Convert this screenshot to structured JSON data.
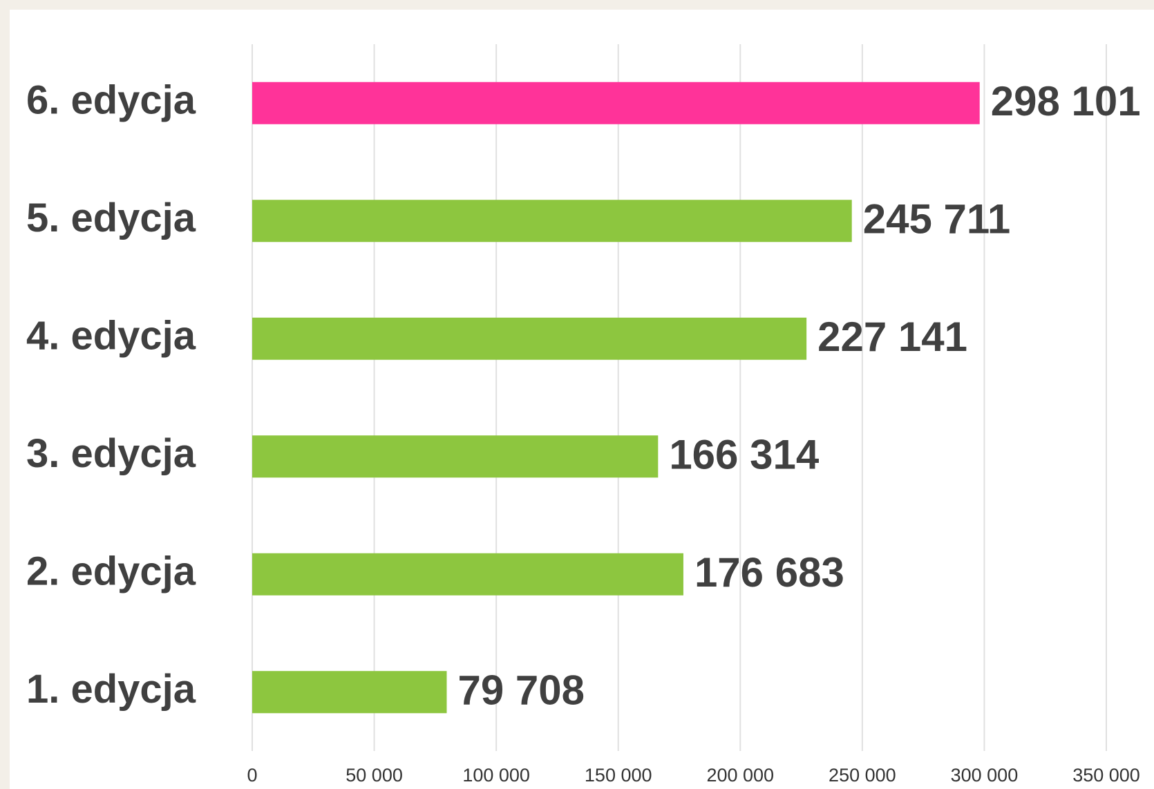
{
  "chart_data": {
    "type": "barh",
    "categories": [
      "6. edycja",
      "5. edycja",
      "4. edycja",
      "3. edycja",
      "2. edycja",
      "1. edycja"
    ],
    "values": [
      298101,
      245711,
      227141,
      166314,
      176683,
      79708
    ],
    "value_labels": [
      "298 101",
      "245 711",
      "227 141",
      "166 314",
      "176 683",
      "79 708"
    ],
    "colors": [
      "#ff3399",
      "#8dc63f",
      "#8dc63f",
      "#8dc63f",
      "#8dc63f",
      "#8dc63f"
    ],
    "xlim": [
      0,
      350000
    ],
    "xticks": [
      0,
      {
        "value": 50000,
        "label": "50 000"
      },
      {
        "value": 100000,
        "label": "100 000"
      },
      {
        "value": 150000,
        "label": "150 000"
      },
      {
        "value": 200000,
        "label": "200 000"
      },
      {
        "value": 250000,
        "label": "250 000"
      },
      {
        "value": 300000,
        "label": "300 000"
      },
      {
        "value": 350000,
        "label": "350 000"
      }
    ],
    "grid": true
  }
}
